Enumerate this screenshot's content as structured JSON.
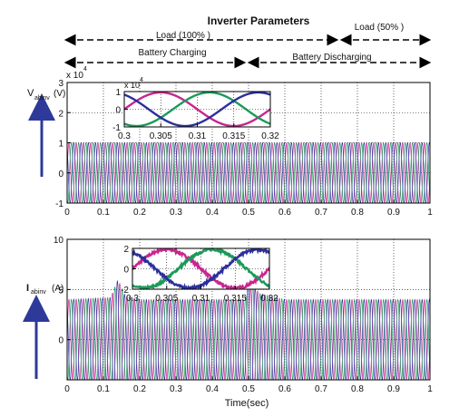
{
  "figure": {
    "title": "Inverter Parameters",
    "annotations": {
      "load_full": "Load (100% )",
      "load_half": "Load (50% )",
      "battery_charging": "Battery Charging",
      "battery_discharging": "Battery Discharging"
    },
    "xlabel": "Time(sec)"
  },
  "colors": {
    "phase_a": "#c8268f",
    "phase_b": "#1a9a5a",
    "phase_c": "#2b2f9a",
    "arrow": "#2d3a9a",
    "axis": "#000000"
  },
  "chart_data": [
    {
      "id": "voltage-main",
      "type": "line",
      "ylabel": "V",
      "ylabel_sub": "abinv",
      "ylabel_unit": "(V)",
      "exponent_text": "x 10",
      "exponent_power": "4",
      "xlim": [
        0,
        1
      ],
      "ylim": [
        -1,
        3
      ],
      "xticks": [
        0,
        0.1,
        0.2,
        0.3,
        0.4,
        0.5,
        0.6,
        0.7,
        0.8,
        0.9,
        1
      ],
      "xtick_labels": [
        "0",
        "0.1",
        "0.2",
        "0.3",
        "0.4",
        "0.5",
        "0.6",
        "0.7",
        "0.8",
        "0.9",
        "1"
      ],
      "yticks": [
        -1,
        0,
        1,
        2,
        3
      ],
      "ytick_labels": [
        "-1",
        "0",
        "1",
        "2",
        "3"
      ],
      "grid": true,
      "waveform": {
        "phases": 3,
        "frequency_hz": 50,
        "amplitude": 1,
        "envelope": [
          [
            0,
            1
          ],
          [
            1,
            1
          ]
        ]
      }
    },
    {
      "id": "voltage-inset",
      "type": "line",
      "exponent_text": "x 10",
      "exponent_power": "4",
      "xlim": [
        0.3,
        0.32
      ],
      "ylim": [
        -1,
        1
      ],
      "xticks": [
        0.3,
        0.305,
        0.31,
        0.315,
        0.32
      ],
      "xtick_labels": [
        "0.3",
        "0.305",
        "0.31",
        "0.315",
        "0.32"
      ],
      "yticks": [
        -1,
        0,
        1
      ],
      "ytick_labels": [
        "-1",
        "0",
        "1"
      ],
      "grid": true,
      "waveform": {
        "phases": 3,
        "frequency_hz": 50,
        "amplitude": 0.95,
        "noise": 0
      }
    },
    {
      "id": "current-main",
      "type": "line",
      "ylabel": "I",
      "ylabel_sub": "abinv",
      "ylabel_unit": "(A)",
      "xlim": [
        0,
        1
      ],
      "ylim": [
        -4,
        10
      ],
      "xticks": [
        0,
        0.1,
        0.2,
        0.3,
        0.4,
        0.5,
        0.6,
        0.7,
        0.8,
        0.9,
        1
      ],
      "xtick_labels": [
        "0",
        "0.1",
        "0.2",
        "0.3",
        "0.4",
        "0.5",
        "0.6",
        "0.7",
        "0.8",
        "0.9",
        "1"
      ],
      "yticks": [
        0,
        5,
        10
      ],
      "ytick_labels": [
        "0",
        "5",
        "10"
      ],
      "grid": true,
      "waveform": {
        "phases": 3,
        "frequency_hz": 50,
        "amplitude": 2,
        "envelope": [
          [
            0,
            2.0
          ],
          [
            0.12,
            2.1
          ],
          [
            0.14,
            3.0
          ],
          [
            0.16,
            2.2
          ],
          [
            0.2,
            2.0
          ],
          [
            0.49,
            2.0
          ],
          [
            0.5,
            3.0
          ],
          [
            0.53,
            2.3
          ],
          [
            0.6,
            2.0
          ],
          [
            1,
            2.0
          ]
        ]
      }
    },
    {
      "id": "current-inset",
      "type": "line",
      "xlim": [
        0.3,
        0.32
      ],
      "ylim": [
        -2,
        2
      ],
      "xticks": [
        0.3,
        0.305,
        0.31,
        0.315,
        0.32
      ],
      "xtick_labels": [
        "0.3",
        "0.305",
        "0.31",
        "0.315",
        "0.32"
      ],
      "yticks": [
        -2,
        0,
        2
      ],
      "ytick_labels": [
        "-2",
        "0",
        "2"
      ],
      "grid": true,
      "waveform": {
        "phases": 3,
        "frequency_hz": 50,
        "amplitude": 1.9,
        "noise": 0.12
      }
    }
  ]
}
